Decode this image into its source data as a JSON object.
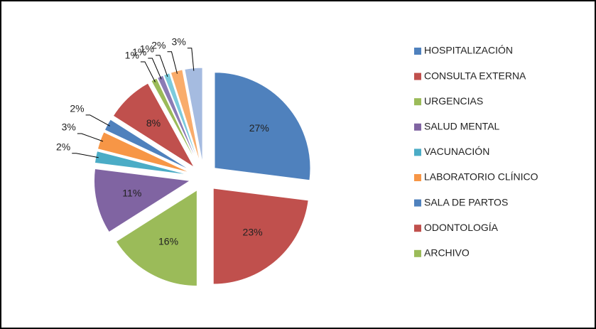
{
  "chart_data": {
    "type": "pie",
    "categories": [
      "HOSPITALIZACIÓN",
      "CONSULTA EXTERNA",
      "URGENCIAS",
      "SALUD MENTAL",
      "VACUNACIÓN",
      "LABORATORIO CLÍNICO",
      "SALA DE PARTOS",
      "ODONTOLOGÍA",
      "ARCHIVO",
      null,
      null,
      null,
      null
    ],
    "values": [
      27,
      23,
      16,
      11,
      2,
      3,
      2,
      8,
      1,
      1,
      1,
      2,
      3
    ],
    "value_labels": [
      "27%",
      "23%",
      "16%",
      "11%",
      "2%",
      "3%",
      "2%",
      "8%",
      "1%",
      "1%",
      "1%",
      "2%",
      "3%"
    ],
    "colors": [
      "#4f81bd",
      "#c0504d",
      "#9bbb59",
      "#8064a2",
      "#4bacc6",
      "#f79646",
      "#4f81bd",
      "#c0504d",
      "#9bbb59",
      "#8b7bb5",
      "#7ccbdc",
      "#f9ac6b",
      "#a5bbe0"
    ],
    "legend": "right"
  }
}
